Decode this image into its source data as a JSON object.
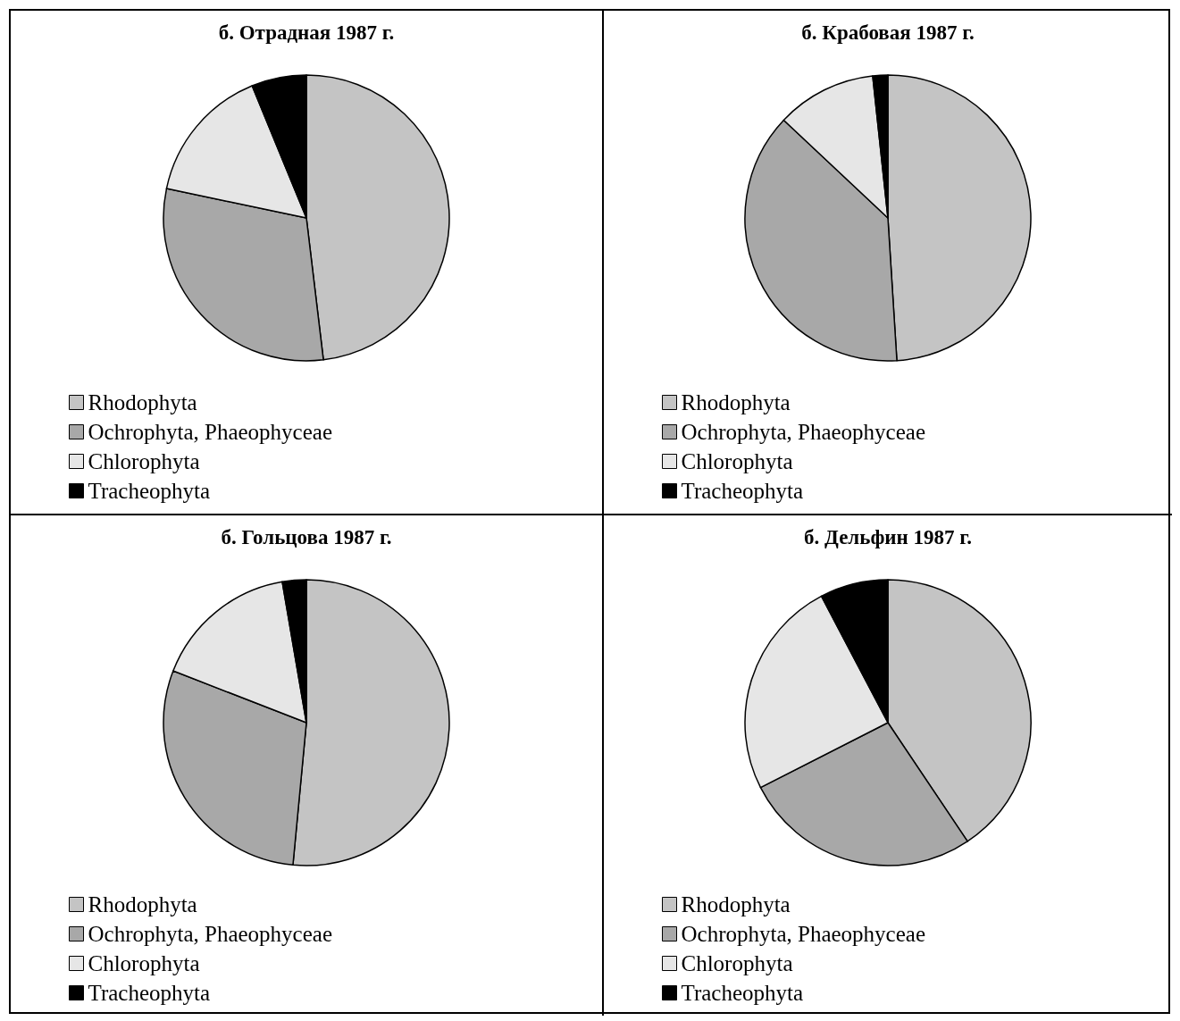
{
  "chart_data": [
    {
      "type": "pie",
      "title": "б. Отрадная 1987 г.",
      "categories": [
        "Rhodophyta",
        "Ochrophyta, Phaeophyceae",
        "Chlorophyta",
        "Tracheophyta"
      ],
      "values": [
        48.1,
        30.2,
        15.5,
        6.2
      ],
      "colors": [
        "#c4c4c4",
        "#a8a8a8",
        "#e6e6e6",
        "#000000"
      ],
      "legend": "bottom left"
    },
    {
      "type": "pie",
      "title": "б. Крабовая 1987 г.",
      "categories": [
        "Rhodophyta",
        "Ochrophyta, Phaeophyceae",
        "Chlorophyta",
        "Tracheophyta"
      ],
      "values": [
        49.0,
        38.0,
        11.3,
        1.7
      ],
      "colors": [
        "#c4c4c4",
        "#a8a8a8",
        "#e6e6e6",
        "#000000"
      ],
      "legend": "bottom left"
    },
    {
      "type": "pie",
      "title": "б. Гольцова 1987 г.",
      "categories": [
        "Rhodophyta",
        "Ochrophyta, Phaeophyceae",
        "Chlorophyta",
        "Tracheophyta"
      ],
      "values": [
        51.5,
        29.4,
        16.4,
        2.7
      ],
      "colors": [
        "#c4c4c4",
        "#a8a8a8",
        "#e6e6e6",
        "#000000"
      ],
      "legend": "bottom left"
    },
    {
      "type": "pie",
      "title": "б. Дельфин 1987 г.",
      "categories": [
        "Rhodophyta",
        "Ochrophyta, Phaeophyceae",
        "Chlorophyta",
        "Tracheophyta"
      ],
      "values": [
        40.6,
        26.9,
        24.8,
        7.7
      ],
      "colors": [
        "#c4c4c4",
        "#a8a8a8",
        "#e6e6e6",
        "#000000"
      ],
      "legend": "bottom left"
    }
  ]
}
